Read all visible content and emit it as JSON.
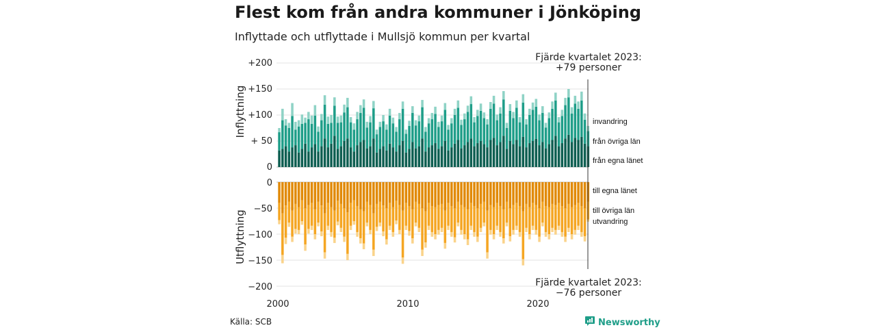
{
  "header": {
    "title": "Flest kom från andra kommuner i Jönköping",
    "subtitle": "Inflyttade och utflyttade i Mullsjö kommun per kvartal"
  },
  "footer": {
    "source": "Källa: SCB",
    "brand": "Newsworthy"
  },
  "colors": {
    "in_dark": "#0f5f52",
    "in_mid": "#1f9e89",
    "in_light": "#8fd3c6",
    "out_dark": "#e18a08",
    "out_mid": "#f5a623",
    "out_light": "#fad38a",
    "brand": "#1f9e89"
  },
  "chart_data": {
    "type": "bar",
    "stacked": true,
    "grid": true,
    "x_tick_labels": [
      "2000",
      "2010",
      "2020"
    ],
    "x_range": [
      "2000 Q1",
      "2023 Q4"
    ],
    "panels": [
      {
        "name": "inflyttning",
        "ylabel": "Inflyttning",
        "ylim": [
          0,
          200
        ],
        "y_tick_labels": [
          "0",
          "+ 50",
          "+100",
          "+150",
          "+200"
        ],
        "series_labels": [
          "från egna länet",
          "från övriga län",
          "invandring"
        ],
        "series": {
          "from_own_county": [
            32,
            35,
            40,
            30,
            38,
            42,
            28,
            35,
            45,
            30,
            38,
            44,
            30,
            40,
            55,
            38,
            45,
            60,
            35,
            40,
            50,
            55,
            38,
            30,
            42,
            48,
            52,
            36,
            40,
            55,
            28,
            35,
            40,
            32,
            45,
            38,
            30,
            42,
            50,
            28,
            35,
            48,
            36,
            40,
            55,
            30,
            38,
            42,
            46,
            35,
            40,
            50,
            32,
            38,
            45,
            52,
            36,
            42,
            48,
            55,
            40,
            46,
            50,
            44,
            38,
            52,
            56,
            42,
            48,
            60,
            35,
            50,
            44,
            52,
            40,
            58,
            38,
            46,
            50,
            54,
            42,
            48,
            36,
            44,
            52,
            60,
            40,
            46,
            55,
            62,
            48,
            56,
            52,
            58,
            45,
            40
          ],
          "from_other_counties": [
            35,
            55,
            40,
            45,
            60,
            30,
            50,
            48,
            40,
            62,
            45,
            55,
            38,
            50,
            65,
            45,
            40,
            58,
            50,
            46,
            55,
            60,
            48,
            42,
            50,
            56,
            62,
            40,
            46,
            58,
            35,
            42,
            48,
            40,
            54,
            46,
            38,
            50,
            62,
            36,
            44,
            56,
            44,
            48,
            60,
            38,
            46,
            50,
            56,
            42,
            48,
            60,
            40,
            46,
            55,
            62,
            45,
            50,
            58,
            66,
            46,
            52,
            58,
            50,
            44,
            60,
            66,
            48,
            55,
            70,
            40,
            58,
            50,
            62,
            46,
            66,
            44,
            54,
            60,
            62,
            48,
            56,
            40,
            50,
            60,
            68,
            46,
            52,
            64,
            72,
            55,
            66,
            60,
            70,
            46,
            29
          ],
          "immigration": [
            8,
            22,
            12,
            10,
            25,
            15,
            12,
            18,
            10,
            14,
            16,
            20,
            10,
            12,
            18,
            14,
            15,
            16,
            12,
            13,
            15,
            18,
            10,
            12,
            14,
            15,
            16,
            11,
            12,
            14,
            9,
            10,
            12,
            10,
            13,
            11,
            9,
            12,
            14,
            8,
            10,
            13,
            10,
            11,
            14,
            9,
            10,
            12,
            14,
            10,
            11,
            13,
            9,
            10,
            12,
            14,
            10,
            11,
            12,
            15,
            10,
            12,
            14,
            11,
            10,
            13,
            15,
            11,
            12,
            16,
            10,
            13,
            12,
            14,
            10,
            16,
            10,
            12,
            14,
            15,
            11,
            13,
            9,
            11,
            14,
            15,
            10,
            12,
            14,
            16,
            12,
            15,
            14,
            17,
            12,
            10
          ]
        }
      },
      {
        "name": "utflyttning",
        "ylabel": "Utflyttning",
        "ylim": [
          -200,
          0
        ],
        "y_tick_labels": [
          "0",
          "−50",
          "−100",
          "−150",
          "−200"
        ],
        "series_labels": [
          "till egna länet",
          "till övriga län",
          "utvandring"
        ],
        "series": {
          "to_own_county": [
            -40,
            -60,
            -45,
            -38,
            -55,
            -42,
            -48,
            -35,
            -50,
            -44,
            -40,
            -52,
            -38,
            -45,
            -60,
            -40,
            -48,
            -55,
            -36,
            -42,
            -50,
            -58,
            -40,
            -35,
            -46,
            -52,
            -56,
            -38,
            -44,
            -60,
            -42,
            -38,
            -45,
            -50,
            -40,
            -48,
            -36,
            -44,
            -55,
            -40,
            -46,
            -52,
            -38,
            -42,
            -50,
            -56,
            -40,
            -46,
            -48,
            -44,
            -42,
            -55,
            -40,
            -46,
            -50,
            -38,
            -44,
            -48,
            -52,
            -40,
            -46,
            -50,
            -42,
            -38,
            -55,
            -44,
            -48,
            -40,
            -46,
            -52,
            -38,
            -50,
            -44,
            -40,
            -46,
            -56,
            -42,
            -48,
            -40,
            -44,
            -50,
            -38,
            -46,
            -48,
            -42,
            -44,
            -40,
            -46,
            -50,
            -42,
            -48,
            -44,
            -40,
            -46,
            -50,
            -38
          ],
          "to_other_counties": [
            -33,
            -80,
            -62,
            -40,
            -50,
            -48,
            -44,
            -40,
            -70,
            -46,
            -44,
            -48,
            -40,
            -50,
            -75,
            -44,
            -48,
            -52,
            -40,
            -46,
            -55,
            -80,
            -44,
            -40,
            -50,
            -56,
            -62,
            -40,
            -48,
            -70,
            -44,
            -40,
            -50,
            -60,
            -44,
            -48,
            -38,
            -48,
            -90,
            -44,
            -48,
            -56,
            -40,
            -46,
            -80,
            -60,
            -44,
            -50,
            -52,
            -48,
            -46,
            -62,
            -44,
            -50,
            -56,
            -40,
            -48,
            -52,
            -58,
            -44,
            -50,
            -55,
            -46,
            -40,
            -80,
            -48,
            -52,
            -44,
            -50,
            -56,
            -40,
            -54,
            -48,
            -44,
            -50,
            -92,
            -46,
            -52,
            -44,
            -48,
            -55,
            -40,
            -50,
            -52,
            -46,
            -48,
            -44,
            -50,
            -55,
            -46,
            -52,
            -48,
            -44,
            -50,
            -54,
            -34
          ],
          "emigration": [
            -8,
            -16,
            -12,
            -8,
            -10,
            -9,
            -8,
            -7,
            -12,
            -9,
            -8,
            -10,
            -7,
            -9,
            -12,
            -8,
            -9,
            -10,
            -7,
            -8,
            -10,
            -12,
            -8,
            -7,
            -9,
            -10,
            -11,
            -7,
            -8,
            -12,
            -8,
            -7,
            -9,
            -10,
            -8,
            -9,
            -7,
            -8,
            -12,
            -8,
            -9,
            -10,
            -7,
            -8,
            -12,
            -10,
            -8,
            -9,
            -10,
            -9,
            -8,
            -11,
            -8,
            -9,
            -10,
            -7,
            -9,
            -10,
            -11,
            -8,
            -9,
            -10,
            -8,
            -7,
            -12,
            -9,
            -10,
            -8,
            -9,
            -10,
            -7,
            -10,
            -9,
            -8,
            -9,
            -12,
            -8,
            -10,
            -8,
            -9,
            -10,
            -7,
            -9,
            -10,
            -8,
            -9,
            -8,
            -9,
            -10,
            -8,
            -10,
            -9,
            -8,
            -9,
            -10,
            -4
          ]
        }
      }
    ],
    "annotations": [
      {
        "id": "ann_in_l1",
        "text": "Fjärde kvartalet 2023:"
      },
      {
        "id": "ann_in_l2",
        "text": "+79 personer"
      },
      {
        "id": "ann_out_l1",
        "text": "Fjärde kvartalet 2023:"
      },
      {
        "id": "ann_out_l2",
        "text": "−76 personer"
      }
    ]
  }
}
